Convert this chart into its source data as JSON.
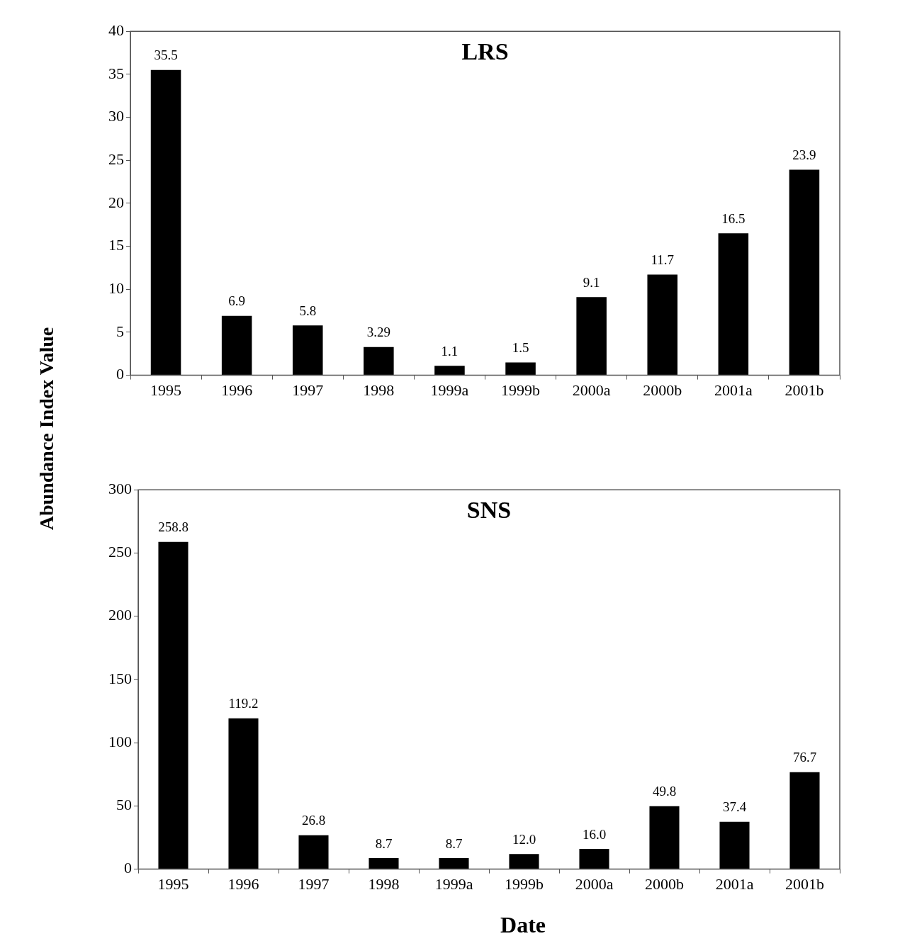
{
  "chart_data": [
    {
      "type": "bar",
      "title": "LRS",
      "ylabel": "Abundance Index Value",
      "categories": [
        "1995",
        "1996",
        "1997",
        "1998",
        "1999a",
        "1999b",
        "2000a",
        "2000b",
        "2001a",
        "2001b"
      ],
      "values": [
        35.5,
        6.9,
        5.8,
        3.29,
        1.1,
        1.5,
        9.1,
        11.7,
        16.5,
        23.9
      ],
      "value_labels": [
        "35.5",
        "6.9",
        "5.8",
        "3.29",
        "1.1",
        "1.5",
        "9.1",
        "11.7",
        "16.5",
        "23.9"
      ],
      "color": "#000000",
      "ylim": [
        0,
        40
      ],
      "yticks": [
        0,
        5,
        10,
        15,
        20,
        25,
        30,
        35,
        40
      ],
      "legend": false
    },
    {
      "type": "bar",
      "title": "SNS",
      "xlabel": "Date",
      "categories": [
        "1995",
        "1996",
        "1997",
        "1998",
        "1999a",
        "1999b",
        "2000a",
        "2000b",
        "2001a",
        "2001b"
      ],
      "values": [
        258.8,
        119.2,
        26.8,
        8.7,
        8.7,
        12.0,
        16.0,
        49.8,
        37.4,
        76.7
      ],
      "value_labels": [
        "258.8",
        "119.2",
        "26.8",
        "8.7",
        "8.7",
        "12.0",
        "16.0",
        "49.8",
        "37.4",
        "76.7"
      ],
      "color": "#000000",
      "ylim": [
        0,
        300
      ],
      "yticks": [
        0,
        50,
        100,
        150,
        200,
        250,
        300
      ],
      "legend": false
    }
  ]
}
